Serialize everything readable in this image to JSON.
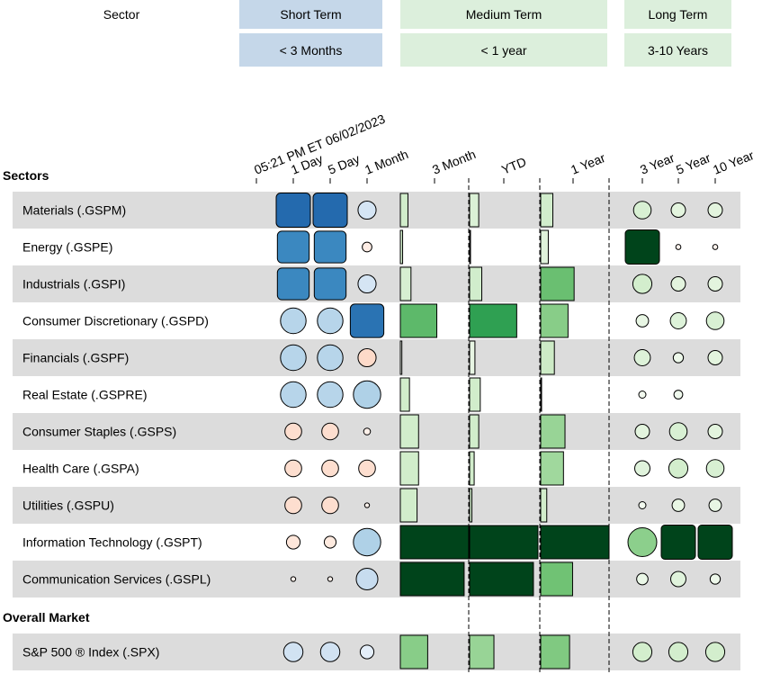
{
  "header": {
    "sector_label": "Sector",
    "short_term": "Short Term",
    "short_term_sub": "< 3 Months",
    "medium_term": "Medium Term",
    "medium_term_sub": "< 1 year",
    "long_term": "Long Term",
    "long_term_sub": "3-10 Years"
  },
  "colors": {
    "short_band": "#c5d7e9",
    "medium_band": "#dcefdc",
    "long_band": "#dcefdc",
    "row_shade": "#dcdcdc"
  },
  "chart_data": {
    "type": "table",
    "timestamp_label": "05:21 PM ET 06/02/2023",
    "columns": [
      "1 Day",
      "5 Day",
      "1 Month",
      "3 Month",
      "YTD",
      "1 Year",
      "3 Year",
      "5 Year",
      "10 Year"
    ],
    "section_titles": [
      "Sectors",
      "Overall Market"
    ],
    "sectors": [
      {
        "name": "Materials (.GSPM)",
        "values": [
          4,
          4,
          0.7,
          -0.5,
          0.6,
          0.8,
          0.6,
          0.4,
          0.4
        ]
      },
      {
        "name": "Energy (.GSPE)",
        "values": [
          3.3,
          3.3,
          -0.2,
          -0.15,
          0,
          0.5,
          3.6,
          -0.05,
          -0.05
        ]
      },
      {
        "name": "Industrials (.GSPI)",
        "values": [
          3.3,
          3.3,
          0.7,
          0.7,
          0.8,
          2.2,
          0.7,
          0.4,
          0.4
        ]
      },
      {
        "name": "Consumer Discretionary (.GSPD)",
        "values": [
          1.4,
          1.4,
          3.8,
          2.4,
          3.1,
          1.8,
          0.3,
          0.5,
          0.6
        ]
      },
      {
        "name": "Financials (.GSPF)",
        "values": [
          1.4,
          1.4,
          -0.7,
          0.1,
          0.35,
          0.9,
          0.5,
          0.2,
          0.4
        ]
      },
      {
        "name": "Real Estate (.GSPRE)",
        "values": [
          1.4,
          1.4,
          1.6,
          -0.6,
          -0.7,
          0.05,
          0.1,
          0.15,
          0
        ]
      },
      {
        "name": "Consumer Staples (.GSPS)",
        "values": [
          -0.6,
          -0.6,
          -0.1,
          -1.2,
          -0.6,
          1.6,
          0.4,
          0.6,
          0.4
        ]
      },
      {
        "name": "Health Care (.GSPA)",
        "values": [
          -0.6,
          -0.6,
          -0.6,
          -1.2,
          -0.3,
          1.5,
          0.45,
          0.7,
          0.6
        ]
      },
      {
        "name": "Utilities (.GSPU)",
        "values": [
          -0.6,
          -0.6,
          -0.05,
          -1.1,
          -0.15,
          -0.4,
          0.1,
          0.3,
          0.3
        ]
      },
      {
        "name": "Information Technology (.GSPT)",
        "values": [
          -0.4,
          -0.3,
          1.6,
          4.5,
          4.5,
          4.5,
          1.6,
          3.6,
          3.6
        ]
      },
      {
        "name": "Communication Services (.GSPL)",
        "values": [
          -0.05,
          -0.05,
          1.0,
          4.2,
          4.2,
          2.1,
          0.25,
          0.45,
          0.2
        ]
      }
    ],
    "overall": [
      {
        "name": "S&P 500 ® Index (.SPX)",
        "values": [
          0.8,
          0.8,
          0.4,
          1.8,
          1.6,
          1.9,
          0.7,
          0.7,
          0.7
        ]
      }
    ]
  }
}
